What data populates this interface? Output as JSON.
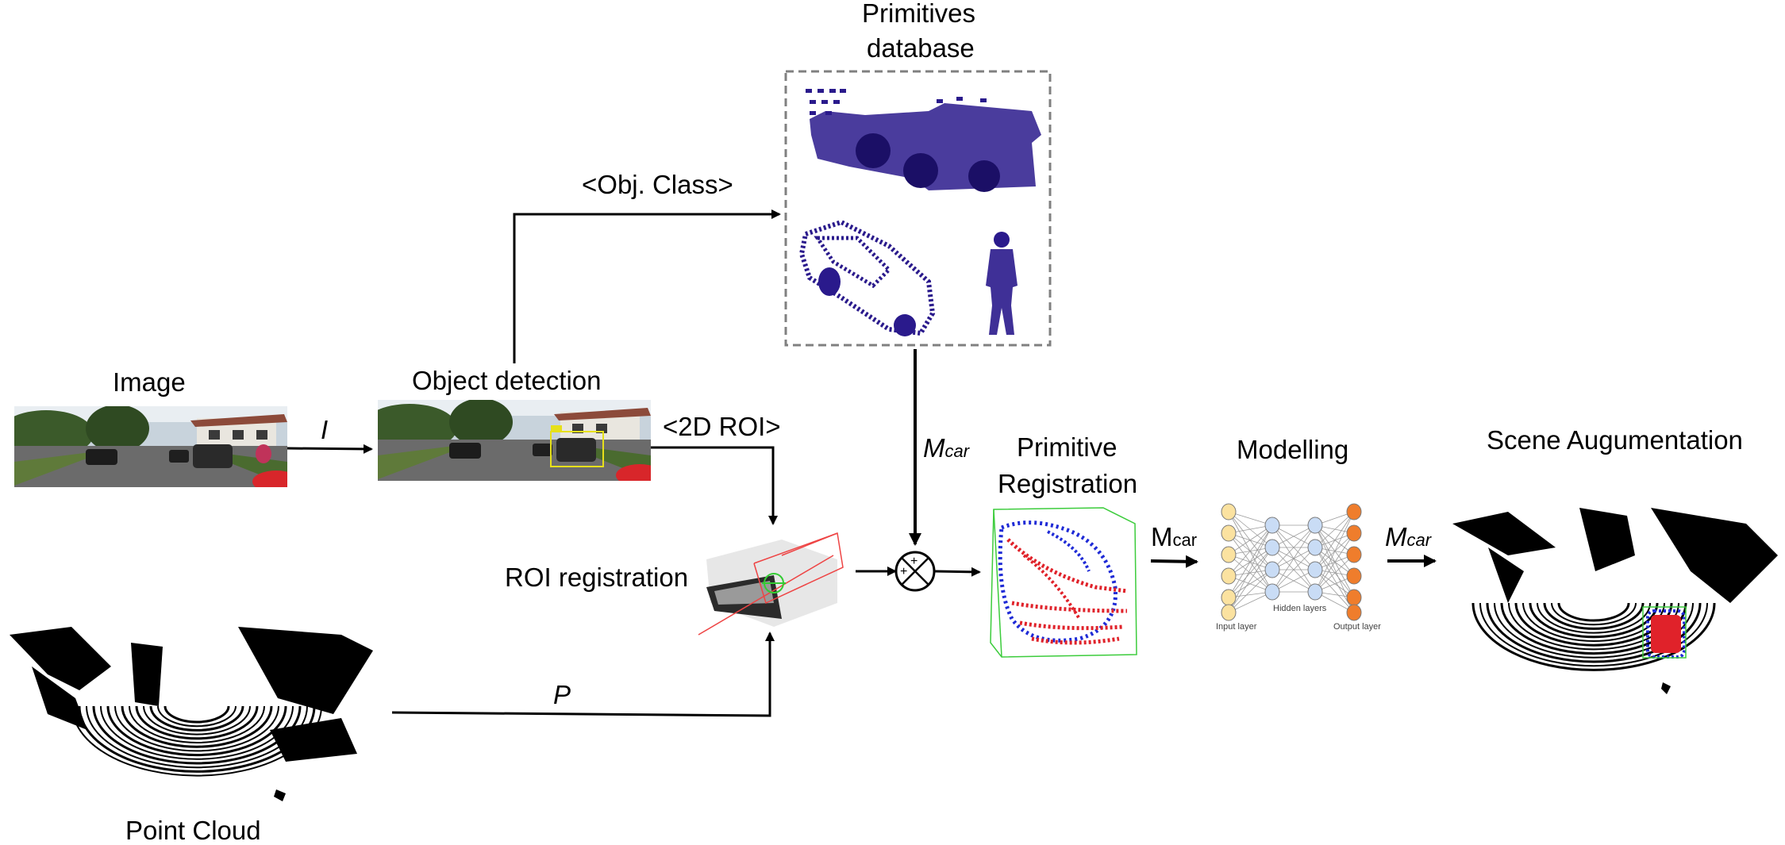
{
  "labels": {
    "primitives_db_line1": "Primitives",
    "primitives_db_line2": "database",
    "obj_class": "<Obj. Class>",
    "image": "Image",
    "object_detection": "Object detection",
    "roi_2d": "<2D ROI>",
    "arrow_i": "I",
    "m_car_main": "M",
    "m_car_sub": "car",
    "roi_registration": "ROI registration",
    "primitive_registration_line1": "Primitive",
    "primitive_registration_line2": "Registration",
    "modelling": "Modelling",
    "m_car_2_main": "M",
    "m_car_2_sub": "car",
    "m_car_3_main": "M",
    "m_car_3_sub": "car",
    "scene_augmentation": "Scene Augumentation",
    "point_cloud": "Point Cloud",
    "arrow_p": "P"
  },
  "nn": {
    "input_layer": "Input layer",
    "hidden_layers": "Hidden layers",
    "output_layer": "Output layer"
  },
  "colors": {
    "primitive_points": "#2a1a8c",
    "registration_blue": "#1f2bd6",
    "registration_red": "#e0222a",
    "bbox_green": "#3ccc3c",
    "nn_input": "#fbe2a0",
    "nn_hidden": "#c9dcf5",
    "nn_output": "#ef7d2c",
    "dashed_box": "#808080"
  }
}
